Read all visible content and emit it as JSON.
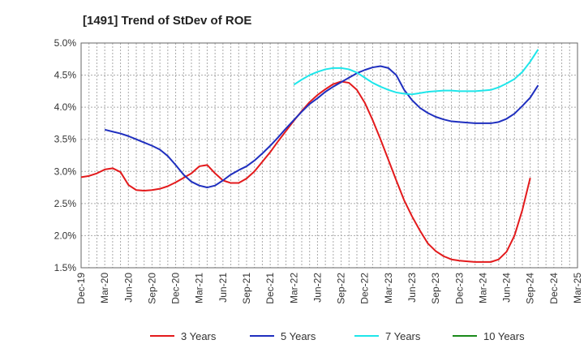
{
  "chart_data": {
    "type": "line",
    "title": "[1491]  Trend of StDev of ROE",
    "xlabel": "",
    "ylabel": "",
    "ylim": [
      1.5,
      5.0
    ],
    "yticks": [
      "5.0%",
      "4.5%",
      "4.0%",
      "3.5%",
      "3.0%",
      "2.5%",
      "2.0%",
      "1.5%"
    ],
    "ytick_values": [
      5.0,
      4.5,
      4.0,
      3.5,
      3.0,
      2.5,
      2.0,
      1.5
    ],
    "xticks": [
      "Dec-19",
      "Mar-20",
      "Jun-20",
      "Sep-20",
      "Dec-20",
      "Mar-21",
      "Jun-21",
      "Sep-21",
      "Dec-21",
      "Mar-22",
      "Jun-22",
      "Sep-22",
      "Dec-22",
      "Mar-23",
      "Jun-23",
      "Sep-23",
      "Dec-23",
      "Mar-24",
      "Jun-24",
      "Sep-24",
      "Dec-24",
      "Mar-25"
    ],
    "grid": true,
    "legend_position": "bottom",
    "series": [
      {
        "name": "3 Years",
        "color": "#e31a1c",
        "points": [
          [
            "Dec-19",
            2.91
          ],
          [
            "Jan-20",
            2.93
          ],
          [
            "Feb-20",
            2.97
          ],
          [
            "Mar-20",
            3.03
          ],
          [
            "Apr-20",
            3.05
          ],
          [
            "May-20",
            2.99
          ],
          [
            "Jun-20",
            2.79
          ],
          [
            "Jul-20",
            2.71
          ],
          [
            "Aug-20",
            2.7
          ],
          [
            "Sep-20",
            2.71
          ],
          [
            "Oct-20",
            2.73
          ],
          [
            "Nov-20",
            2.77
          ],
          [
            "Dec-20",
            2.83
          ],
          [
            "Jan-21",
            2.9
          ],
          [
            "Feb-21",
            2.97
          ],
          [
            "Mar-21",
            3.08
          ],
          [
            "Apr-21",
            3.1
          ],
          [
            "May-21",
            2.97
          ],
          [
            "Jun-21",
            2.86
          ],
          [
            "Jul-21",
            2.82
          ],
          [
            "Aug-21",
            2.82
          ],
          [
            "Sep-21",
            2.89
          ],
          [
            "Oct-21",
            3.0
          ],
          [
            "Nov-21",
            3.15
          ],
          [
            "Dec-21",
            3.3
          ],
          [
            "Jan-22",
            3.47
          ],
          [
            "Feb-22",
            3.63
          ],
          [
            "Mar-22",
            3.79
          ],
          [
            "Apr-22",
            3.94
          ],
          [
            "May-22",
            4.08
          ],
          [
            "Jun-22",
            4.19
          ],
          [
            "Jul-22",
            4.28
          ],
          [
            "Aug-22",
            4.36
          ],
          [
            "Sep-22",
            4.4
          ],
          [
            "Oct-22",
            4.38
          ],
          [
            "Nov-22",
            4.27
          ],
          [
            "Dec-22",
            4.07
          ],
          [
            "Jan-23",
            3.8
          ],
          [
            "Feb-23",
            3.5
          ],
          [
            "Mar-23",
            3.18
          ],
          [
            "Apr-23",
            2.86
          ],
          [
            "May-23",
            2.55
          ],
          [
            "Jun-23",
            2.3
          ],
          [
            "Jul-23",
            2.08
          ],
          [
            "Aug-23",
            1.88
          ],
          [
            "Sep-23",
            1.76
          ],
          [
            "Oct-23",
            1.68
          ],
          [
            "Nov-23",
            1.63
          ],
          [
            "Dec-23",
            1.61
          ],
          [
            "Jan-24",
            1.6
          ],
          [
            "Feb-24",
            1.59
          ],
          [
            "Mar-24",
            1.59
          ],
          [
            "Apr-24",
            1.59
          ],
          [
            "May-24",
            1.63
          ],
          [
            "Jun-24",
            1.75
          ],
          [
            "Jul-24",
            2.0
          ],
          [
            "Aug-24",
            2.4
          ],
          [
            "Sep-24",
            2.9
          ]
        ]
      },
      {
        "name": "5 Years",
        "color": "#1f2fbf",
        "points": [
          [
            "Mar-20",
            3.65
          ],
          [
            "Apr-20",
            3.62
          ],
          [
            "May-20",
            3.59
          ],
          [
            "Jun-20",
            3.55
          ],
          [
            "Jul-20",
            3.5
          ],
          [
            "Aug-20",
            3.45
          ],
          [
            "Sep-20",
            3.4
          ],
          [
            "Oct-20",
            3.34
          ],
          [
            "Nov-20",
            3.24
          ],
          [
            "Dec-20",
            3.1
          ],
          [
            "Jan-21",
            2.95
          ],
          [
            "Feb-21",
            2.84
          ],
          [
            "Mar-21",
            2.78
          ],
          [
            "Apr-21",
            2.75
          ],
          [
            "May-21",
            2.78
          ],
          [
            "Jun-21",
            2.86
          ],
          [
            "Jul-21",
            2.95
          ],
          [
            "Aug-21",
            3.02
          ],
          [
            "Sep-21",
            3.08
          ],
          [
            "Oct-21",
            3.17
          ],
          [
            "Nov-21",
            3.28
          ],
          [
            "Dec-21",
            3.4
          ],
          [
            "Jan-22",
            3.53
          ],
          [
            "Feb-22",
            3.67
          ],
          [
            "Mar-22",
            3.8
          ],
          [
            "Apr-22",
            3.93
          ],
          [
            "May-22",
            4.05
          ],
          [
            "Jun-22",
            4.14
          ],
          [
            "Jul-22",
            4.24
          ],
          [
            "Aug-22",
            4.32
          ],
          [
            "Sep-22",
            4.39
          ],
          [
            "Oct-22",
            4.46
          ],
          [
            "Nov-22",
            4.53
          ],
          [
            "Dec-22",
            4.58
          ],
          [
            "Jan-23",
            4.62
          ],
          [
            "Feb-23",
            4.64
          ],
          [
            "Mar-23",
            4.61
          ],
          [
            "Apr-23",
            4.5
          ],
          [
            "May-23",
            4.27
          ],
          [
            "Jun-23",
            4.11
          ],
          [
            "Jul-23",
            3.99
          ],
          [
            "Aug-23",
            3.91
          ],
          [
            "Sep-23",
            3.85
          ],
          [
            "Oct-23",
            3.81
          ],
          [
            "Nov-23",
            3.78
          ],
          [
            "Dec-23",
            3.77
          ],
          [
            "Jan-24",
            3.76
          ],
          [
            "Feb-24",
            3.75
          ],
          [
            "Mar-24",
            3.75
          ],
          [
            "Apr-24",
            3.75
          ],
          [
            "May-24",
            3.77
          ],
          [
            "Jun-24",
            3.82
          ],
          [
            "Jul-24",
            3.9
          ],
          [
            "Aug-24",
            4.02
          ],
          [
            "Sep-24",
            4.15
          ],
          [
            "Oct-24",
            4.34
          ]
        ]
      },
      {
        "name": "7 Years",
        "color": "#1ee6ea",
        "points": [
          [
            "Mar-22",
            4.35
          ],
          [
            "Apr-22",
            4.43
          ],
          [
            "May-22",
            4.5
          ],
          [
            "Jun-22",
            4.55
          ],
          [
            "Jul-22",
            4.59
          ],
          [
            "Aug-22",
            4.61
          ],
          [
            "Sep-22",
            4.61
          ],
          [
            "Oct-22",
            4.59
          ],
          [
            "Nov-22",
            4.54
          ],
          [
            "Dec-22",
            4.46
          ],
          [
            "Jan-23",
            4.38
          ],
          [
            "Feb-23",
            4.32
          ],
          [
            "Mar-23",
            4.27
          ],
          [
            "Apr-23",
            4.23
          ],
          [
            "May-23",
            4.21
          ],
          [
            "Jun-23",
            4.2
          ],
          [
            "Jul-23",
            4.22
          ],
          [
            "Aug-23",
            4.24
          ],
          [
            "Sep-23",
            4.25
          ],
          [
            "Oct-23",
            4.26
          ],
          [
            "Nov-23",
            4.26
          ],
          [
            "Dec-23",
            4.25
          ],
          [
            "Jan-24",
            4.25
          ],
          [
            "Feb-24",
            4.25
          ],
          [
            "Mar-24",
            4.26
          ],
          [
            "Apr-24",
            4.27
          ],
          [
            "May-24",
            4.31
          ],
          [
            "Jun-24",
            4.37
          ],
          [
            "Jul-24",
            4.44
          ],
          [
            "Aug-24",
            4.55
          ],
          [
            "Sep-24",
            4.71
          ],
          [
            "Oct-24",
            4.9
          ]
        ]
      },
      {
        "name": "10 Years",
        "color": "#1a8a1a",
        "points": []
      }
    ]
  }
}
